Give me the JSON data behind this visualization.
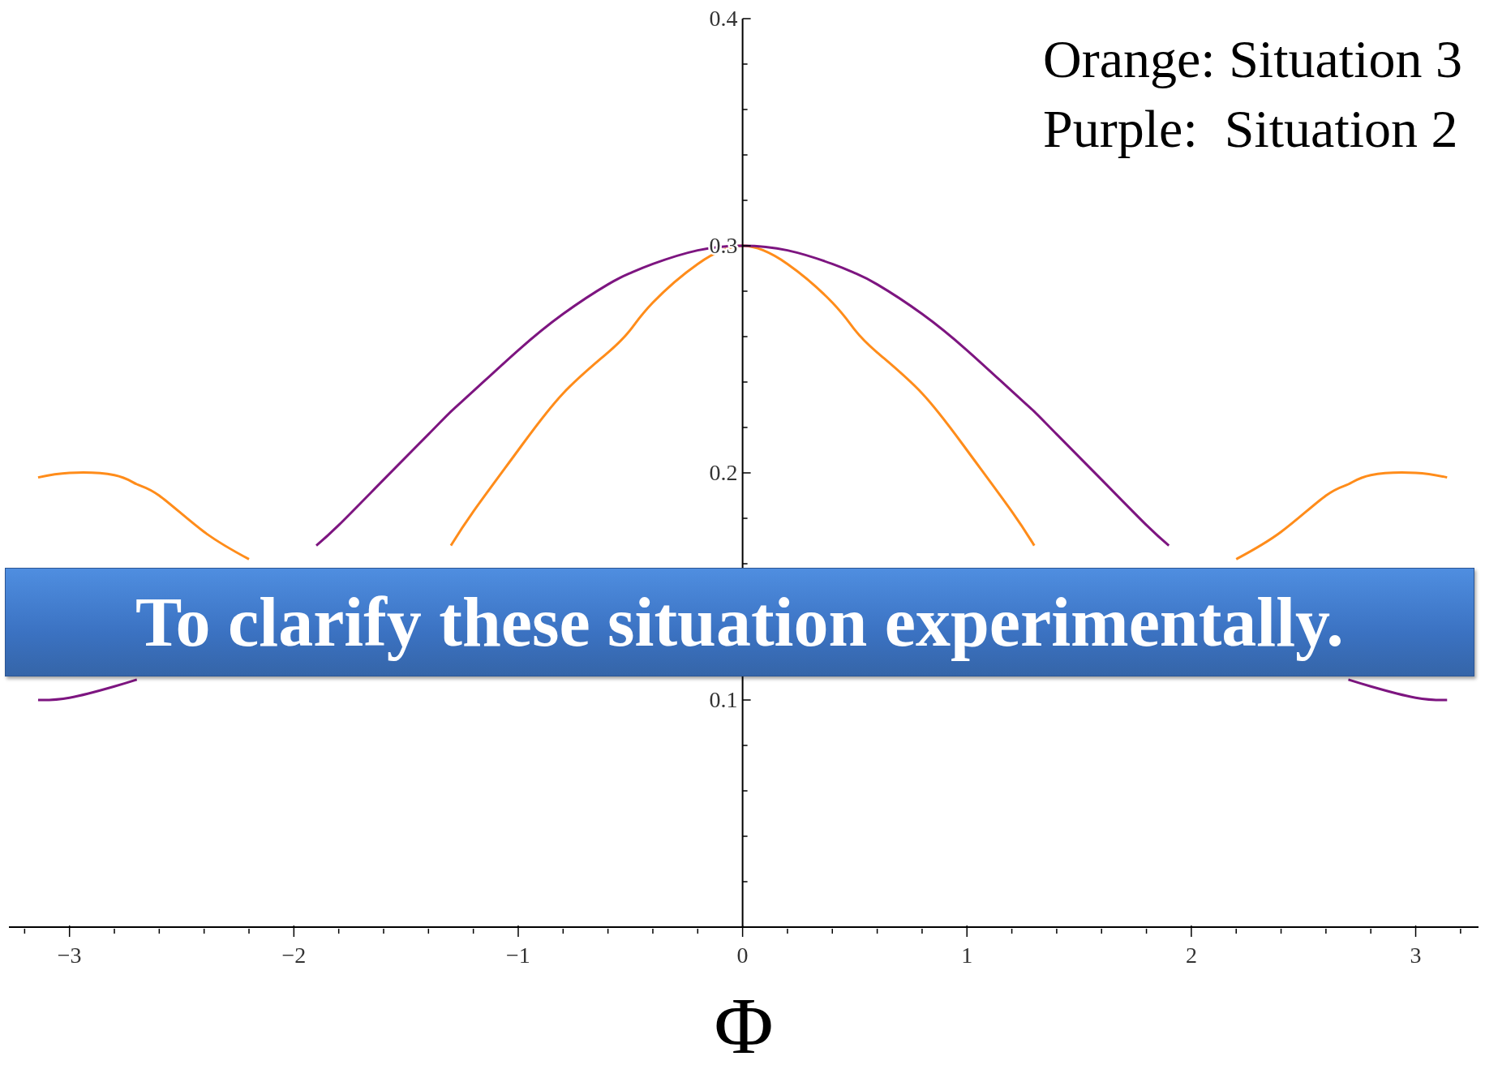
{
  "chart_data": {
    "type": "line",
    "xlabel": "Φ",
    "annotations": [
      "Orange: Situation 3",
      "Purple:  Situation 2",
      "To clarify these situation experimentally."
    ],
    "x": [
      -3.14,
      -3.0,
      -2.8,
      -2.7,
      -2.6,
      -2.4,
      -2.2,
      -2.0,
      -1.9,
      -1.8,
      -1.6,
      -1.4,
      -1.3,
      -1.2,
      -1.0,
      -0.8,
      -0.6,
      -0.5,
      -0.4,
      -0.2,
      0,
      0.2,
      0.4,
      0.5,
      0.6,
      0.8,
      1.0,
      1.2,
      1.3,
      1.4,
      1.6,
      1.8,
      1.9,
      2.0,
      2.2,
      2.4,
      2.6,
      2.7,
      2.8,
      3.0,
      3.14
    ],
    "series": [
      {
        "color": "#ff8c1a",
        "values": [
          0.198,
          0.2,
          0.199,
          0.195,
          0.19,
          0.174,
          0.162,
          null,
          null,
          null,
          null,
          null,
          0.168,
          0.183,
          0.21,
          0.235,
          0.253,
          0.263,
          0.275,
          0.292,
          0.3,
          0.292,
          0.275,
          0.263,
          0.253,
          0.235,
          0.21,
          0.183,
          0.168,
          null,
          null,
          null,
          null,
          null,
          0.162,
          0.174,
          0.19,
          0.195,
          0.199,
          0.2,
          0.198
        ]
      },
      {
        "color": "#7d1580",
        "values": [
          0.1,
          0.101,
          0.106,
          0.109,
          null,
          null,
          null,
          null,
          0.168,
          0.177,
          0.197,
          0.217,
          0.227,
          0.236,
          0.254,
          0.27,
          0.283,
          0.288,
          0.292,
          0.298,
          0.3,
          0.298,
          0.292,
          0.288,
          0.283,
          0.27,
          0.254,
          0.236,
          0.227,
          0.217,
          0.197,
          0.177,
          0.168,
          null,
          null,
          null,
          null,
          0.109,
          0.106,
          0.101,
          0.1
        ]
      }
    ],
    "xlim": [
      -3.27,
      3.28
    ],
    "ylim": [
      0,
      0.4
    ],
    "xticks": [
      {
        "value": -3.2,
        "label": null
      },
      {
        "value": -3,
        "label": "−3"
      },
      {
        "value": -2.8,
        "label": null
      },
      {
        "value": -2.6,
        "label": null
      },
      {
        "value": -2.4,
        "label": null
      },
      {
        "value": -2.2,
        "label": null
      },
      {
        "value": -2,
        "label": "−2"
      },
      {
        "value": -1.8,
        "label": null
      },
      {
        "value": -1.6,
        "label": null
      },
      {
        "value": -1.4,
        "label": null
      },
      {
        "value": -1.2,
        "label": null
      },
      {
        "value": -1,
        "label": "−1"
      },
      {
        "value": -0.8,
        "label": null
      },
      {
        "value": -0.6,
        "label": null
      },
      {
        "value": -0.4,
        "label": null
      },
      {
        "value": -0.2,
        "label": null
      },
      0,
      {
        "value": 0.2,
        "label": null
      },
      {
        "value": 0.4,
        "label": null
      },
      {
        "value": 0.6,
        "label": null
      },
      {
        "value": 0.8,
        "label": null
      },
      1,
      {
        "value": 1.2,
        "label": null
      },
      {
        "value": 1.4,
        "label": null
      },
      {
        "value": 1.6,
        "label": null
      },
      {
        "value": 1.8,
        "label": null
      },
      2,
      {
        "value": 2.2,
        "label": null
      },
      {
        "value": 2.4,
        "label": null
      },
      {
        "value": 2.6,
        "label": null
      },
      {
        "value": 2.8,
        "label": null
      },
      3,
      {
        "value": 3.2,
        "label": null
      }
    ],
    "yticks": [
      {
        "value": 0.02,
        "label": null
      },
      {
        "value": 0.04,
        "label": null
      },
      {
        "value": 0.06,
        "label": null
      },
      {
        "value": 0.08,
        "label": null
      },
      0.1,
      {
        "value": 0.12,
        "label": null
      },
      {
        "value": 0.14,
        "label": null
      },
      {
        "value": 0.16,
        "label": null
      },
      {
        "value": 0.18,
        "label": null
      },
      0.2,
      {
        "value": 0.22,
        "label": null
      },
      {
        "value": 0.24,
        "label": null
      },
      {
        "value": 0.26,
        "label": null
      },
      {
        "value": 0.28,
        "label": null
      },
      0.3,
      {
        "value": 0.32,
        "label": null
      },
      {
        "value": 0.34,
        "label": null
      },
      {
        "value": 0.36,
        "label": null
      },
      {
        "value": 0.38,
        "label": null
      },
      0.4
    ]
  }
}
